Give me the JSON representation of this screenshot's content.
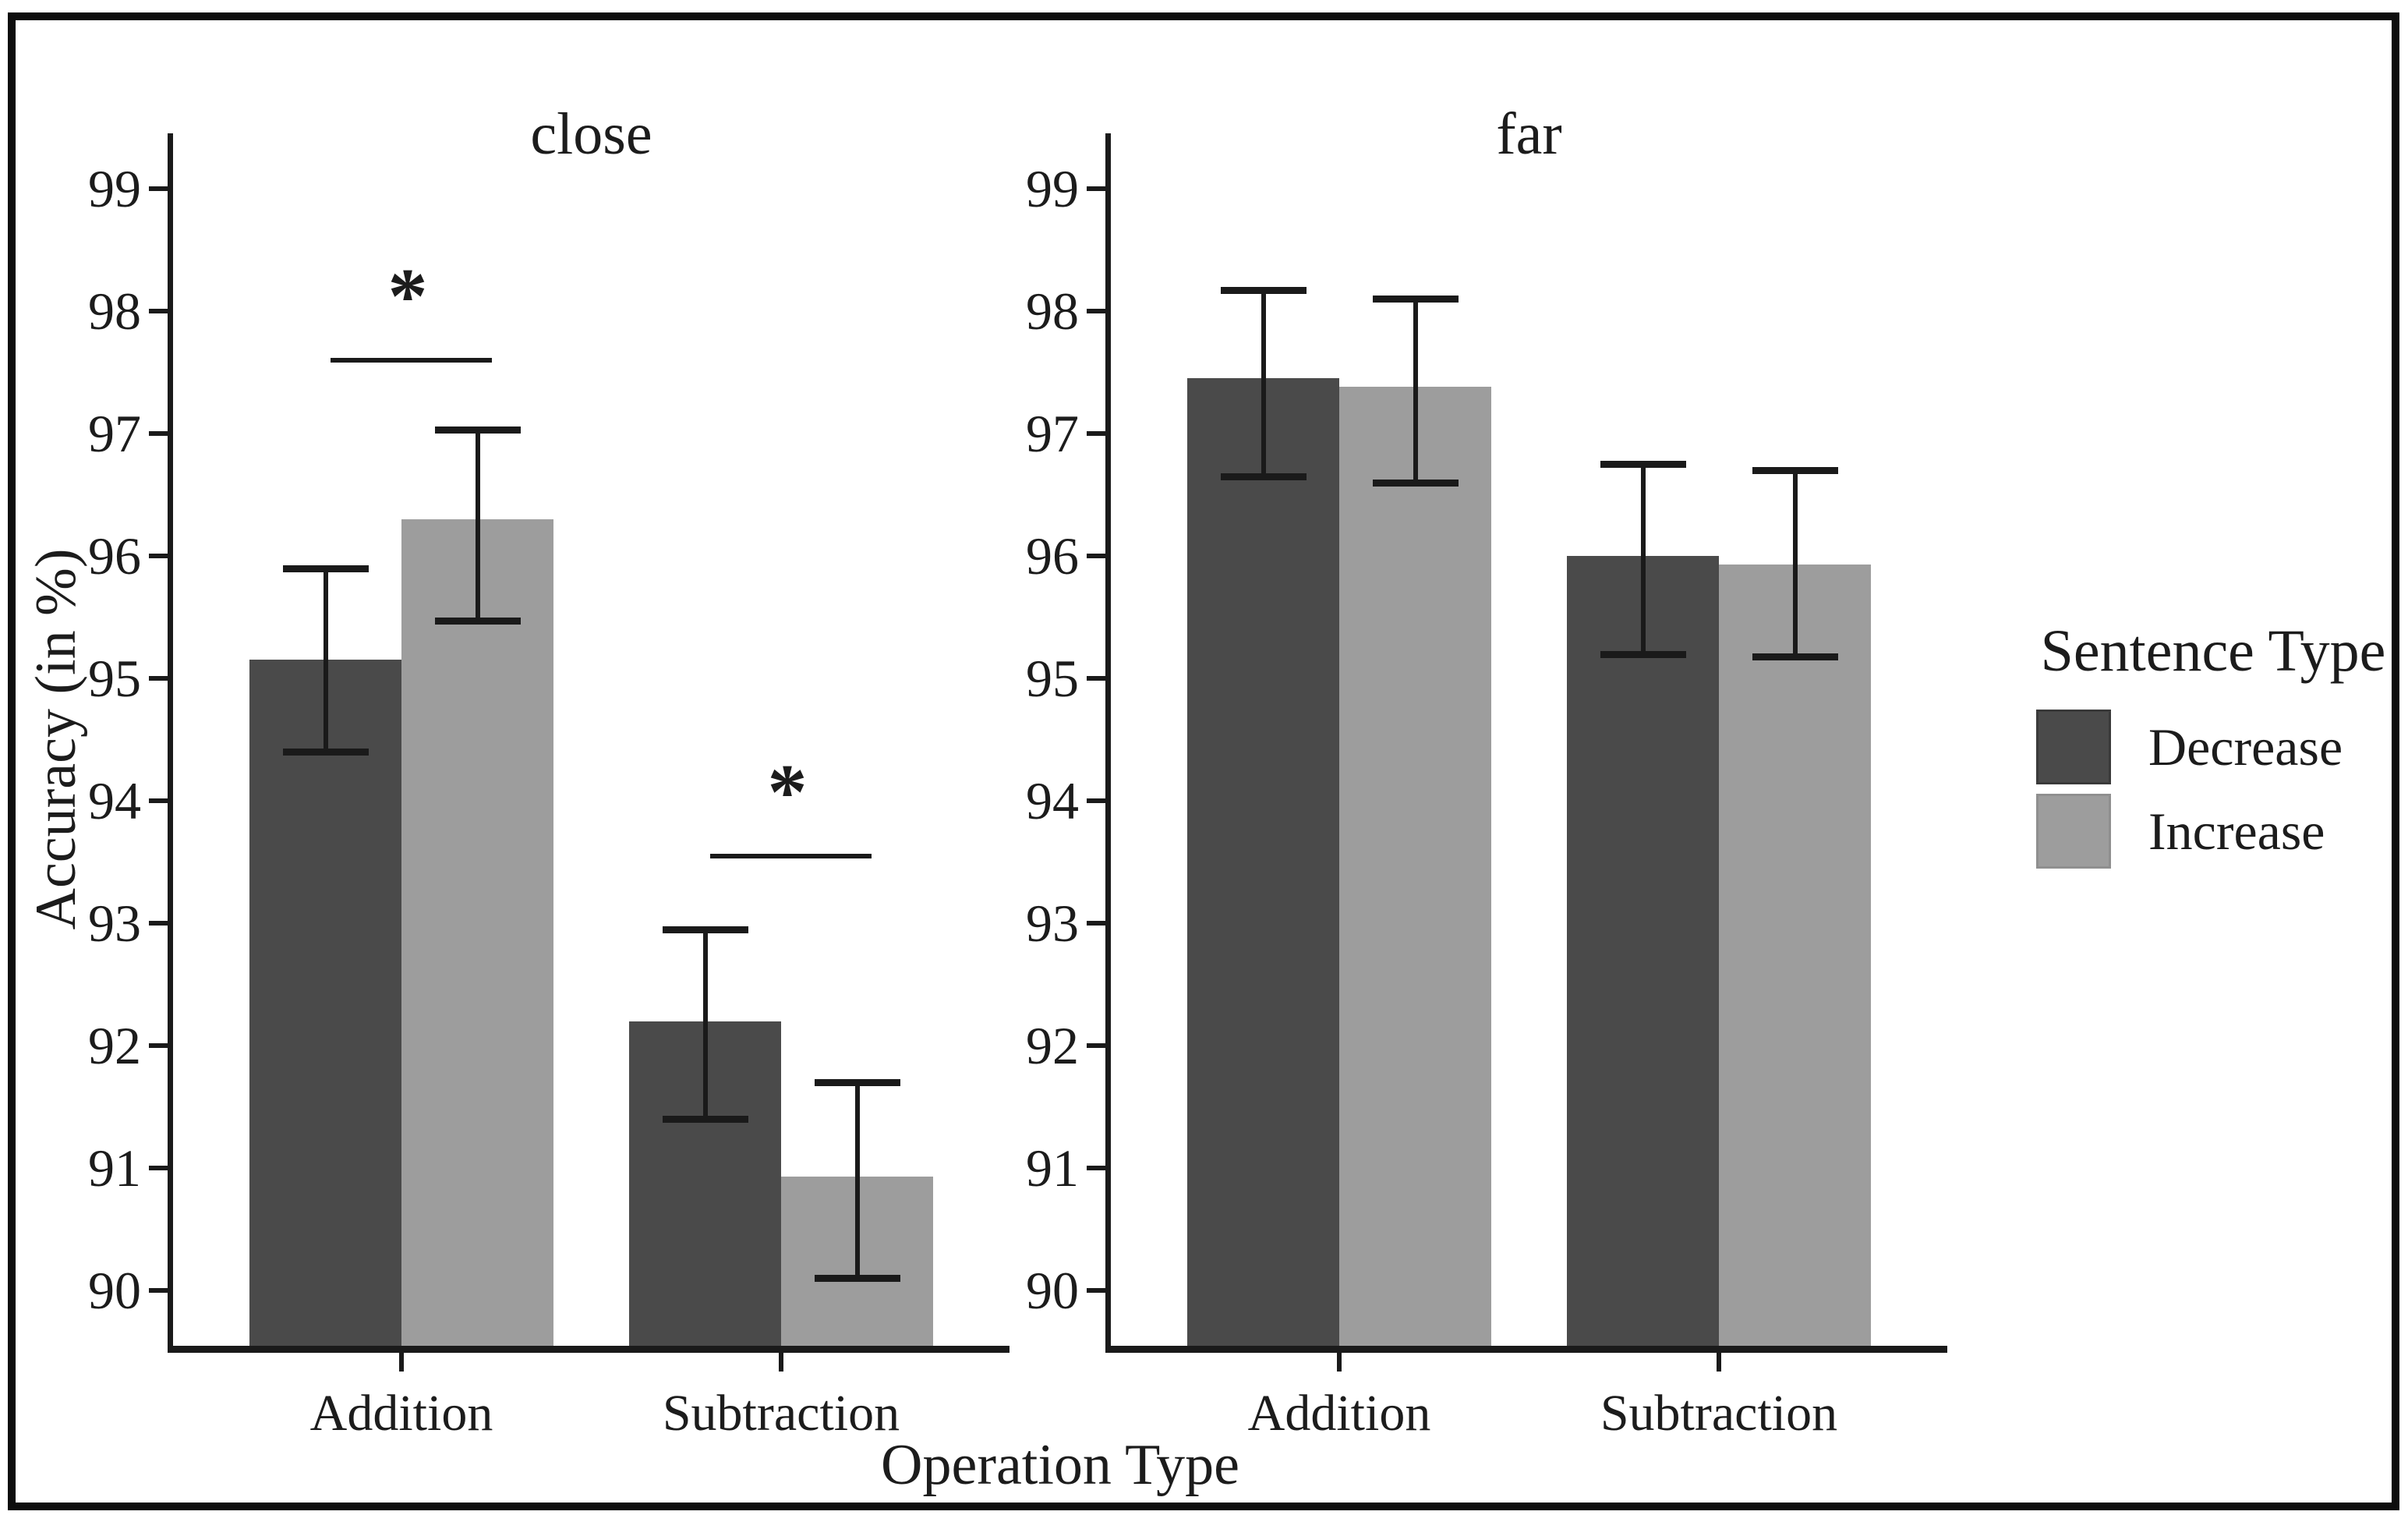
{
  "chart_data": {
    "type": "bar",
    "title": "",
    "xlabel": "Operation Type",
    "ylabel": "Accuracy (in %)",
    "categories": [
      "Addition",
      "Subtraction"
    ],
    "yticks": [
      90,
      91,
      92,
      93,
      94,
      95,
      96,
      97,
      98,
      99
    ],
    "ylim": [
      89.55,
      99.45
    ],
    "grid": false,
    "error_bars": true,
    "legend_position": "right",
    "legend": {
      "title": "Sentence Type",
      "items": [
        {
          "label": "Decrease",
          "color": "#4a4a4a"
        },
        {
          "label": "Increase",
          "color": "#9d9d9d"
        }
      ]
    },
    "facets": [
      {
        "label": "close",
        "series": [
          {
            "name": "Decrease",
            "color": "#4a4a4a",
            "values": [
              {
                "category": "Addition",
                "mean": 95.15,
                "ci_low": 94.4,
                "ci_high": 95.9
              },
              {
                "category": "Subtraction",
                "mean": 92.2,
                "ci_low": 91.4,
                "ci_high": 92.95
              }
            ]
          },
          {
            "name": "Increase",
            "color": "#9d9d9d",
            "values": [
              {
                "category": "Addition",
                "mean": 96.3,
                "ci_low": 95.47,
                "ci_high": 97.03
              },
              {
                "category": "Subtraction",
                "mean": 90.93,
                "ci_low": 90.1,
                "ci_high": 91.7
              }
            ]
          }
        ],
        "significance": [
          {
            "category": "Addition",
            "label": "*",
            "line_value": 97.6
          },
          {
            "category": "Subtraction",
            "label": "*",
            "line_value": 93.55
          }
        ]
      },
      {
        "label": "far",
        "series": [
          {
            "name": "Decrease",
            "color": "#4a4a4a",
            "values": [
              {
                "category": "Addition",
                "mean": 97.45,
                "ci_low": 96.65,
                "ci_high": 98.17
              },
              {
                "category": "Subtraction",
                "mean": 96.0,
                "ci_low": 95.2,
                "ci_high": 96.75
              }
            ]
          },
          {
            "name": "Increase",
            "color": "#9d9d9d",
            "values": [
              {
                "category": "Addition",
                "mean": 97.38,
                "ci_low": 96.6,
                "ci_high": 98.1
              },
              {
                "category": "Subtraction",
                "mean": 95.93,
                "ci_low": 95.18,
                "ci_high": 96.7
              }
            ]
          }
        ],
        "significance": []
      }
    ]
  }
}
